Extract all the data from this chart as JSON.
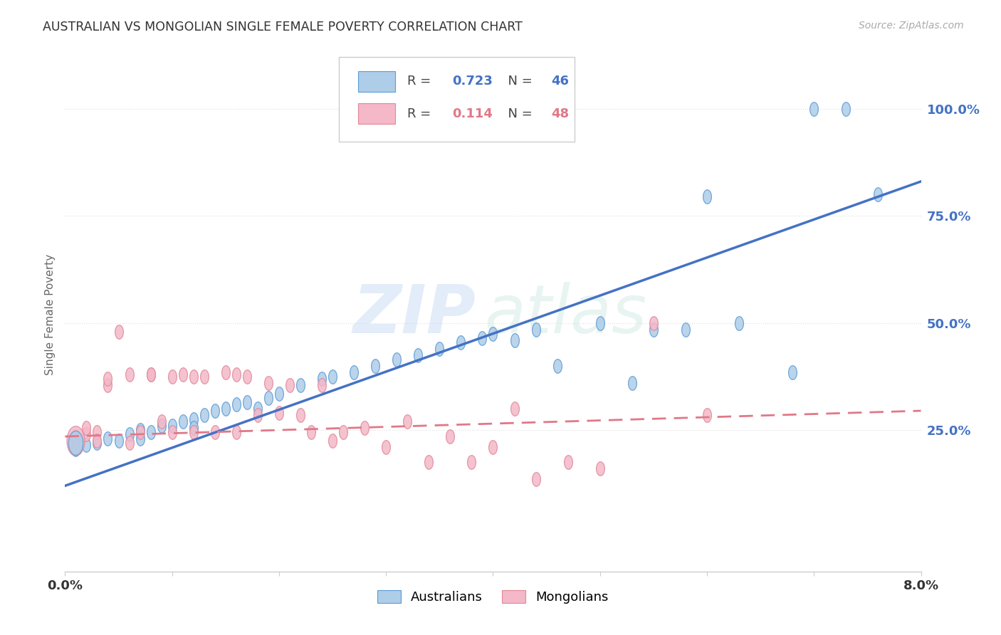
{
  "title": "AUSTRALIAN VS MONGOLIAN SINGLE FEMALE POVERTY CORRELATION CHART",
  "source": "Source: ZipAtlas.com",
  "ylabel": "Single Female Poverty",
  "legend_aus": "Australians",
  "legend_mong": "Mongolians",
  "aus_R": "0.723",
  "aus_N": "46",
  "mong_R": "0.114",
  "mong_N": "48",
  "ytick_labels": [
    "25.0%",
    "50.0%",
    "75.0%",
    "100.0%"
  ],
  "ytick_values": [
    0.25,
    0.5,
    0.75,
    1.0
  ],
  "aus_color": "#aecde8",
  "aus_edge_color": "#5b9bd5",
  "aus_line_color": "#4472c4",
  "mong_color": "#f4b8c8",
  "mong_edge_color": "#e08898",
  "mong_line_color": "#e07888",
  "background": "#ffffff",
  "grid_color": "#e0e0e0",
  "aus_x": [
    0.001,
    0.002,
    0.003,
    0.004,
    0.005,
    0.006,
    0.007,
    0.007,
    0.008,
    0.009,
    0.01,
    0.011,
    0.012,
    0.012,
    0.013,
    0.014,
    0.015,
    0.016,
    0.017,
    0.018,
    0.019,
    0.02,
    0.022,
    0.024,
    0.025,
    0.027,
    0.029,
    0.031,
    0.033,
    0.035,
    0.037,
    0.039,
    0.04,
    0.042,
    0.044,
    0.046,
    0.05,
    0.053,
    0.055,
    0.058,
    0.06,
    0.063,
    0.068,
    0.07,
    0.073,
    0.076
  ],
  "aus_y": [
    0.205,
    0.215,
    0.22,
    0.23,
    0.225,
    0.24,
    0.23,
    0.25,
    0.245,
    0.26,
    0.26,
    0.27,
    0.275,
    0.255,
    0.285,
    0.295,
    0.3,
    0.31,
    0.315,
    0.3,
    0.325,
    0.335,
    0.355,
    0.37,
    0.375,
    0.385,
    0.4,
    0.415,
    0.425,
    0.44,
    0.455,
    0.465,
    0.475,
    0.46,
    0.485,
    0.4,
    0.5,
    0.36,
    0.485,
    0.485,
    0.795,
    0.5,
    0.385,
    1.0,
    1.0,
    0.8
  ],
  "mong_x": [
    0.001,
    0.001,
    0.002,
    0.002,
    0.003,
    0.003,
    0.004,
    0.004,
    0.005,
    0.006,
    0.006,
    0.007,
    0.008,
    0.008,
    0.009,
    0.01,
    0.01,
    0.011,
    0.012,
    0.012,
    0.013,
    0.014,
    0.015,
    0.016,
    0.016,
    0.017,
    0.018,
    0.019,
    0.02,
    0.021,
    0.022,
    0.023,
    0.024,
    0.025,
    0.026,
    0.028,
    0.03,
    0.032,
    0.034,
    0.036,
    0.038,
    0.04,
    0.042,
    0.044,
    0.047,
    0.05,
    0.055,
    0.06
  ],
  "mong_y": [
    0.225,
    0.235,
    0.24,
    0.255,
    0.245,
    0.225,
    0.355,
    0.37,
    0.48,
    0.22,
    0.38,
    0.245,
    0.38,
    0.38,
    0.27,
    0.245,
    0.375,
    0.38,
    0.375,
    0.245,
    0.375,
    0.245,
    0.385,
    0.38,
    0.245,
    0.375,
    0.285,
    0.36,
    0.29,
    0.355,
    0.285,
    0.245,
    0.355,
    0.225,
    0.245,
    0.255,
    0.21,
    0.27,
    0.175,
    0.235,
    0.175,
    0.21,
    0.3,
    0.135,
    0.175,
    0.16,
    0.5,
    0.285
  ],
  "xlim": [
    0.0,
    0.08
  ],
  "ylim": [
    -0.08,
    1.12
  ]
}
